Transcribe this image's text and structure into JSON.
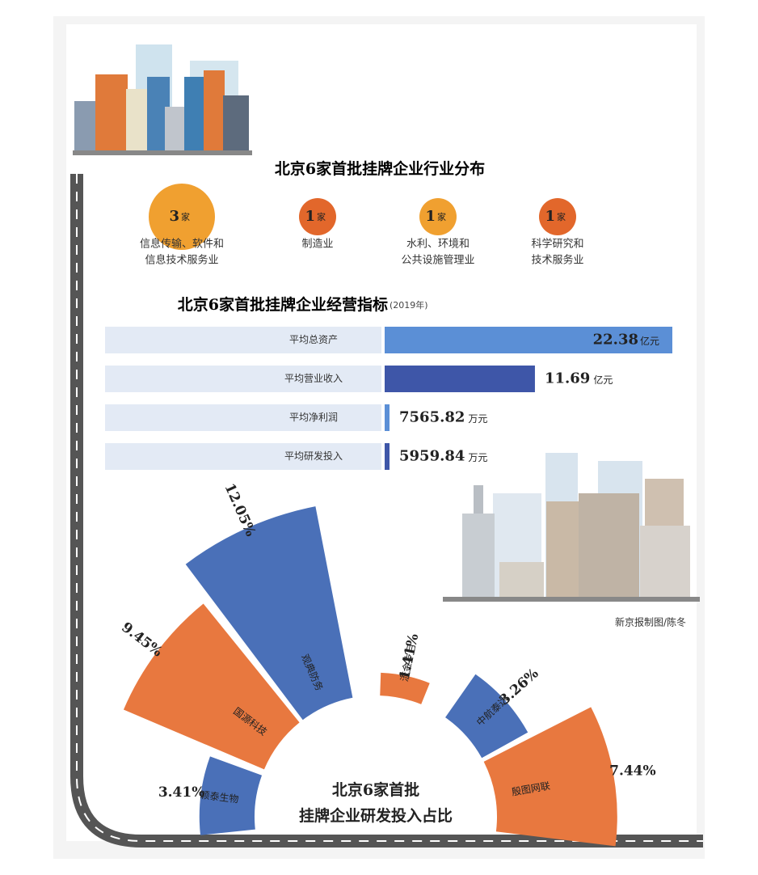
{
  "industry": {
    "title": "北京6家首批挂牌企业行业分布",
    "items": [
      {
        "count": 3,
        "unit": "家",
        "label": [
          "信息传输、软件和",
          "信息技术服务业"
        ],
        "color": "#f0a030"
      },
      {
        "count": 1,
        "unit": "家",
        "label": [
          "制造业"
        ],
        "color": "#e2672b"
      },
      {
        "count": 1,
        "unit": "家",
        "label": [
          "水利、环境和",
          "公共设施管理业"
        ],
        "color": "#f0a030"
      },
      {
        "count": 1,
        "unit": "家",
        "label": [
          "科学研究和",
          "技术服务业"
        ],
        "color": "#e2672b"
      }
    ]
  },
  "indicators": {
    "title": "北京6家首批挂牌企业经营指标",
    "year": "(2019年)",
    "items": [
      {
        "label": "平均总资产",
        "value": 22.38,
        "unit": "亿元",
        "color": "#5b8fd6"
      },
      {
        "label": "平均营业收入",
        "value": 11.69,
        "unit": "亿元",
        "color": "#3e56a8"
      },
      {
        "label": "平均净利润",
        "value": 7565.82,
        "unit": "万元",
        "color": "#5b8fd6"
      },
      {
        "label": "平均研发投入",
        "value": 5959.84,
        "unit": "万元",
        "color": "#3e56a8"
      }
    ]
  },
  "rd": {
    "title": [
      "北京6家首批",
      "挂牌企业研发投入占比"
    ],
    "items": [
      {
        "name": "颖泰生物",
        "value": 3.41,
        "value_label": "3.41%",
        "color": "#4a70b8"
      },
      {
        "name": "国源科技",
        "value": 9.45,
        "value_label": "9.45%",
        "color": "#e8783f"
      },
      {
        "name": "观典防务",
        "value": 12.05,
        "value_label": "12.05%",
        "color": "#4a70b8"
      },
      {
        "name": "流金岁月",
        "value": 1.41,
        "value_label": "1.41%",
        "color": "#e8783f"
      },
      {
        "name": "中航泰达",
        "value": 3.26,
        "value_label": "3.26%",
        "color": "#4a70b8"
      },
      {
        "name": "殷图网联",
        "value": 7.44,
        "value_label": "7.44%",
        "color": "#e8783f"
      }
    ]
  },
  "credit": "新京报制图/陈冬"
}
